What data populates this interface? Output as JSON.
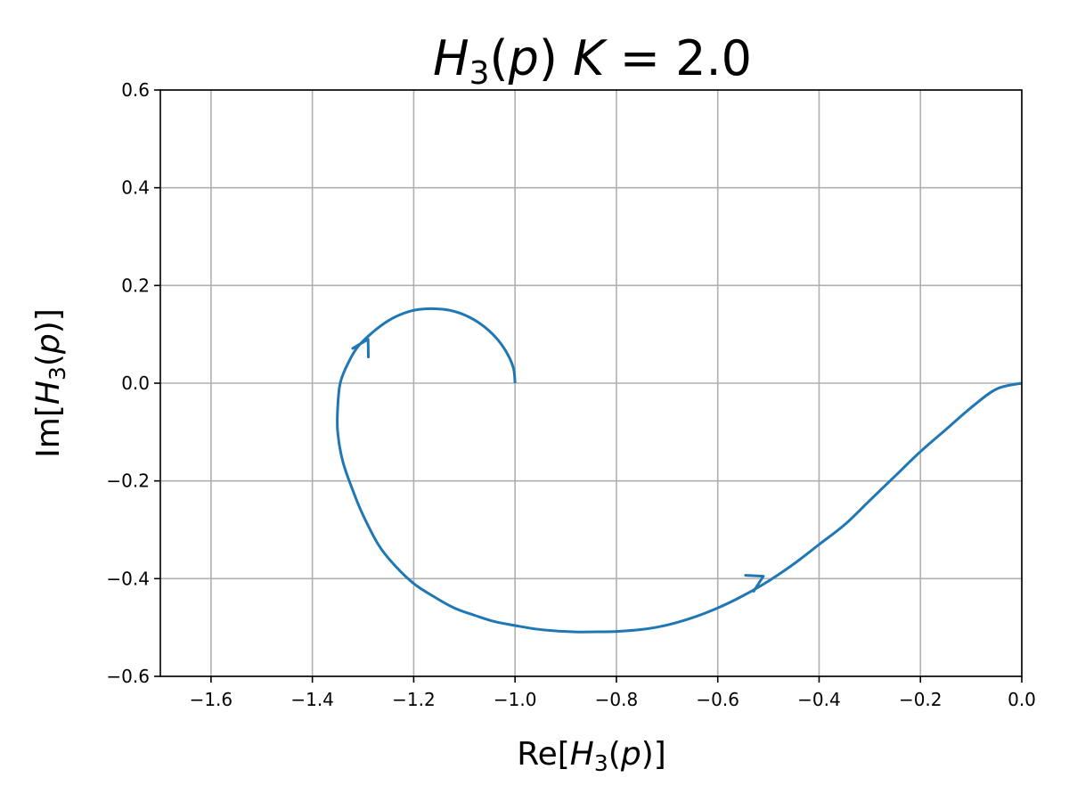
{
  "chart_data": {
    "type": "line",
    "title": {
      "func": "H",
      "sub": "3",
      "arg": "p",
      "param": "K",
      "eq": " = ",
      "value": "2.0"
    },
    "xlabel": {
      "pre": "Re[",
      "func": "H",
      "sub": "3",
      "arg": "p",
      "post": ")]"
    },
    "ylabel": {
      "pre": "Im[",
      "func": "H",
      "sub": "3",
      "arg": "p",
      "post": ")]"
    },
    "xlim": [
      -1.7,
      0.0
    ],
    "ylim": [
      -0.6,
      0.6
    ],
    "xticks": [
      -1.6,
      -1.4,
      -1.2,
      -1.0,
      -0.8,
      -0.6,
      -0.4,
      -0.2,
      0.0
    ],
    "xtick_labels": [
      "−1.6",
      "−1.4",
      "−1.2",
      "−1.0",
      "−0.8",
      "−0.6",
      "−0.4",
      "−0.2",
      "0.0"
    ],
    "yticks": [
      -0.6,
      -0.4,
      -0.2,
      0.0,
      0.2,
      0.4,
      0.6
    ],
    "ytick_labels": [
      "−0.6",
      "−0.4",
      "−0.2",
      "0.0",
      "0.2",
      "0.4",
      "0.6"
    ],
    "grid": true,
    "series": [
      {
        "color": "#1f77b4",
        "x": [
          0.0,
          -0.05,
          -0.1,
          -0.15,
          -0.2,
          -0.25,
          -0.3,
          -0.35,
          -0.4,
          -0.45,
          -0.5,
          -0.55,
          -0.6,
          -0.65,
          -0.7,
          -0.75,
          -0.8,
          -0.85,
          -0.88,
          -0.92,
          -0.96,
          -1.0,
          -1.04,
          -1.08,
          -1.12,
          -1.16,
          -1.2,
          -1.24,
          -1.27,
          -1.3,
          -1.32,
          -1.34,
          -1.35,
          -1.35,
          -1.345,
          -1.33,
          -1.31,
          -1.28,
          -1.25,
          -1.22,
          -1.19,
          -1.15,
          -1.12,
          -1.09,
          -1.06,
          -1.035,
          -1.015,
          -1.003,
          -1.0
        ],
        "y": [
          0.0,
          -0.012,
          -0.05,
          -0.095,
          -0.14,
          -0.19,
          -0.24,
          -0.29,
          -0.33,
          -0.37,
          -0.405,
          -0.435,
          -0.46,
          -0.48,
          -0.495,
          -0.504,
          -0.508,
          -0.509,
          -0.509,
          -0.507,
          -0.503,
          -0.496,
          -0.488,
          -0.475,
          -0.46,
          -0.437,
          -0.41,
          -0.37,
          -0.33,
          -0.27,
          -0.22,
          -0.16,
          -0.1,
          -0.05,
          0.0,
          0.04,
          0.075,
          0.105,
          0.128,
          0.143,
          0.151,
          0.152,
          0.147,
          0.135,
          0.115,
          0.09,
          0.06,
          0.03,
          0.0
        ]
      }
    ],
    "arrows": [
      {
        "at": [
          -0.51,
          -0.395
        ],
        "dir": [
          0.72,
          0.37
        ]
      },
      {
        "at": [
          -1.29,
          0.09
        ],
        "dir": [
          0.28,
          0.5
        ]
      }
    ]
  }
}
